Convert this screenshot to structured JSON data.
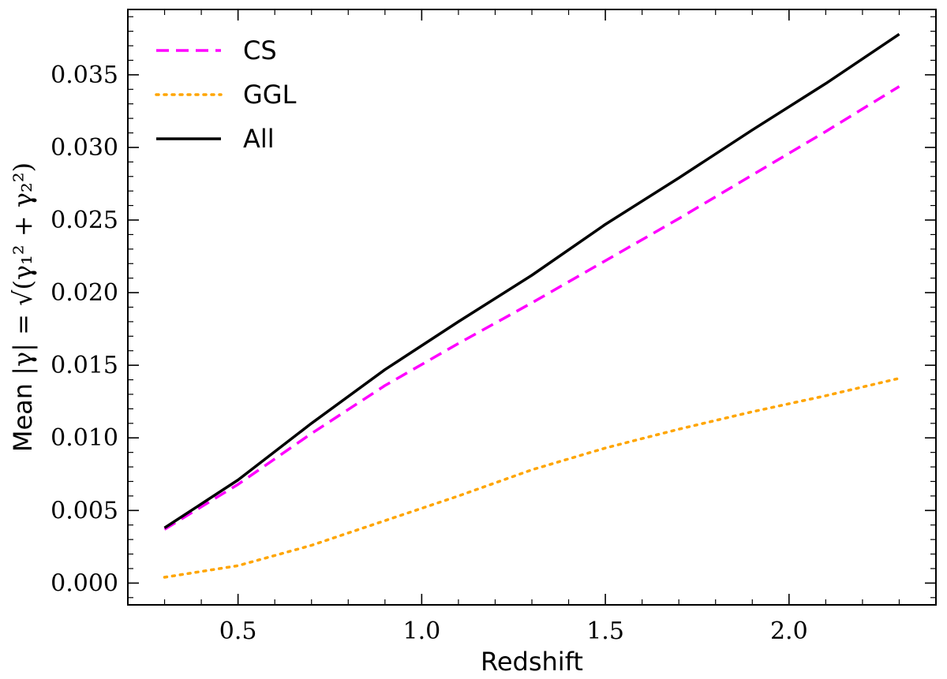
{
  "chart_data": {
    "type": "line",
    "title": "",
    "xlabel": "Redshift",
    "ylabel": {
      "prefix": "Mean",
      "math": "|γ| = √(γ₁² + γ₂²)"
    },
    "xlim": [
      0.2,
      2.4
    ],
    "ylim": [
      -0.0015,
      0.0395
    ],
    "xticks": [
      {
        "value": 0.5,
        "label": "0.5"
      },
      {
        "value": 1.0,
        "label": "1.0"
      },
      {
        "value": 1.5,
        "label": "1.5"
      },
      {
        "value": 2.0,
        "label": "2.0"
      }
    ],
    "yticks": [
      {
        "value": 0.0,
        "label": "0.000"
      },
      {
        "value": 0.005,
        "label": "0.005"
      },
      {
        "value": 0.01,
        "label": "0.010"
      },
      {
        "value": 0.015,
        "label": "0.015"
      },
      {
        "value": 0.02,
        "label": "0.020"
      },
      {
        "value": 0.025,
        "label": "0.025"
      },
      {
        "value": 0.03,
        "label": "0.030"
      },
      {
        "value": 0.035,
        "label": "0.035"
      }
    ],
    "grid": false,
    "legend_position": "top-left",
    "x": [
      0.3,
      0.5,
      0.7,
      0.9,
      1.1,
      1.3,
      1.5,
      1.7,
      1.9,
      2.1,
      2.3
    ],
    "series": [
      {
        "name": "CS",
        "style": "dashed",
        "color": "#ff00ff",
        "values": [
          0.0037,
          0.0068,
          0.0103,
          0.0136,
          0.0165,
          0.0193,
          0.0222,
          0.0251,
          0.0281,
          0.0311,
          0.0342
        ]
      },
      {
        "name": "GGL",
        "style": "dotted",
        "color": "#ffa500",
        "values": [
          0.0004,
          0.0012,
          0.0026,
          0.0043,
          0.006,
          0.0078,
          0.0093,
          0.0106,
          0.0118,
          0.0129,
          0.0141
        ]
      },
      {
        "name": "All",
        "style": "solid",
        "color": "#000000",
        "values": [
          0.0038,
          0.0071,
          0.011,
          0.0147,
          0.018,
          0.0212,
          0.0247,
          0.0279,
          0.0312,
          0.0344,
          0.0378
        ]
      }
    ]
  }
}
